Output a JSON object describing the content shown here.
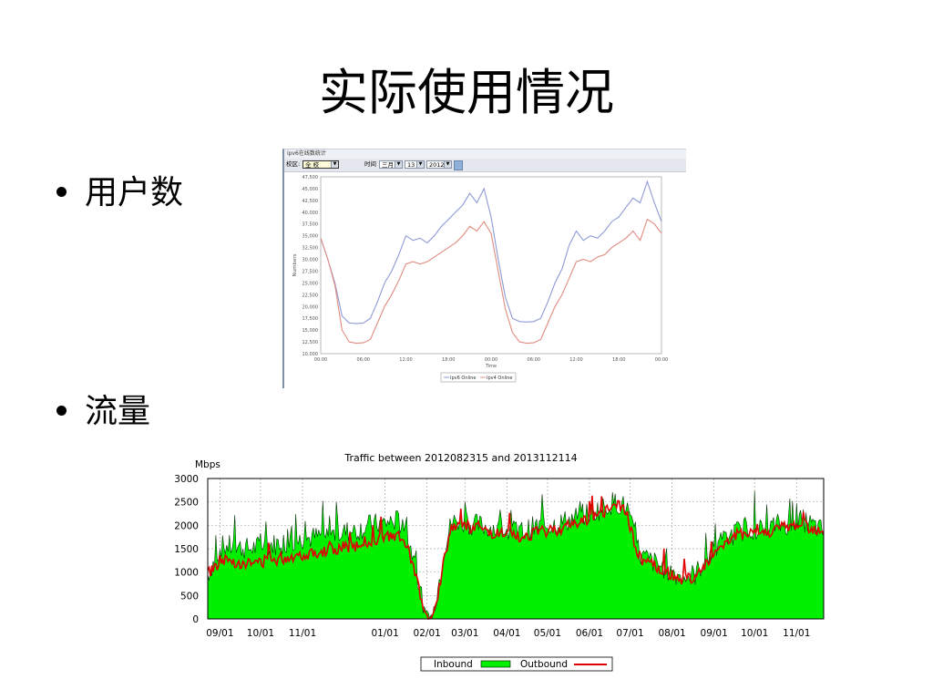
{
  "slide": {
    "title": "实际使用情况",
    "bullets": [
      "用户数",
      "流量"
    ]
  },
  "panel": {
    "title": "ipv6在线数统计",
    "region_label": "校区:",
    "region_value": "全 校",
    "time_label": "时间",
    "month_value": "三月",
    "day_value": "13",
    "year_value": "2012"
  },
  "chart_data": [
    {
      "type": "line",
      "xlabel": "Time",
      "ylabel": "Numbers",
      "ylim": [
        10000,
        47500
      ],
      "yticks": [
        "10,000",
        "12,500",
        "15,000",
        "17,500",
        "20,000",
        "22,500",
        "25,000",
        "27,500",
        "30,000",
        "32,500",
        "35,000",
        "37,500",
        "40,000",
        "42,500",
        "45,000",
        "47,500"
      ],
      "xticks": [
        "00:00",
        "06:00",
        "12:00",
        "18:00",
        "00:00",
        "06:00",
        "12:00",
        "18:00",
        "00:00"
      ],
      "legend": [
        "Ipv6 Online",
        "Ipv4 Online"
      ],
      "colors": {
        "ipv6": "#8f9ad6",
        "ipv4": "#e08c80"
      },
      "series": [
        {
          "name": "Ipv6 Online",
          "x": [
            0,
            1,
            2,
            3,
            4,
            5,
            6,
            7,
            8,
            9,
            10,
            11,
            12,
            13,
            14,
            15,
            16,
            17,
            18,
            19,
            20,
            21,
            22,
            23,
            24,
            25,
            26,
            27,
            28,
            29,
            30,
            31,
            32,
            33,
            34,
            35,
            36,
            37,
            38,
            39,
            40,
            41,
            42,
            43,
            44,
            45,
            46,
            47,
            48
          ],
          "values": [
            34500,
            30000,
            25000,
            18000,
            16500,
            16400,
            16500,
            17500,
            21000,
            25000,
            27500,
            31000,
            35000,
            34000,
            34500,
            33500,
            35000,
            37000,
            38500,
            40000,
            41500,
            44000,
            42000,
            45000,
            39000,
            30000,
            22000,
            17500,
            16800,
            16700,
            16800,
            17500,
            21000,
            25000,
            28000,
            33000,
            36000,
            34000,
            35000,
            34500,
            36000,
            38000,
            39000,
            41000,
            43000,
            42000,
            46500,
            42000,
            38000
          ]
        },
        {
          "name": "Ipv4 Online",
          "x": [
            0,
            1,
            2,
            3,
            4,
            5,
            6,
            7,
            8,
            9,
            10,
            11,
            12,
            13,
            14,
            15,
            16,
            17,
            18,
            19,
            20,
            21,
            22,
            23,
            24,
            25,
            26,
            27,
            28,
            29,
            30,
            31,
            32,
            33,
            34,
            35,
            36,
            37,
            38,
            39,
            40,
            41,
            42,
            43,
            44,
            45,
            46,
            47,
            48
          ],
          "values": [
            34500,
            30000,
            24500,
            15000,
            12500,
            12200,
            12300,
            13000,
            16500,
            20000,
            22500,
            25500,
            29000,
            29500,
            29000,
            29500,
            30500,
            31500,
            32500,
            33500,
            35000,
            37000,
            36000,
            38000,
            35500,
            27500,
            19500,
            14500,
            12500,
            12200,
            12300,
            13000,
            16500,
            20000,
            22500,
            26000,
            29500,
            30000,
            29500,
            30500,
            31000,
            32500,
            33500,
            34500,
            36000,
            34000,
            38500,
            37500,
            35500
          ]
        }
      ]
    },
    {
      "type": "area",
      "title": "Traffic between 2012082315 and 2013112114",
      "ylabel": "Mbps",
      "ylim": [
        0,
        3000
      ],
      "yticks": [
        "0",
        "500",
        "1000",
        "1500",
        "2000",
        "2500",
        "3000"
      ],
      "xticks": [
        "09/01",
        "10/01",
        "11/01",
        "01/01",
        "02/01",
        "03/01",
        "04/01",
        "05/01",
        "06/01",
        "07/01",
        "08/01",
        "09/01",
        "10/01",
        "11/01"
      ],
      "xtick_days": [
        9,
        39,
        70,
        131,
        162,
        190,
        221,
        251,
        282,
        312,
        343,
        374,
        404,
        435
      ],
      "xlim_days": [
        0,
        455
      ],
      "legend": [
        "Inbound",
        "Outbound"
      ],
      "colors": {
        "inbound": "#00f000",
        "outbound": "#e00000",
        "grid": "#aaaaaa"
      },
      "series": [
        {
          "name": "Inbound",
          "x": [
            0,
            5,
            10,
            20,
            30,
            40,
            50,
            60,
            70,
            80,
            90,
            100,
            110,
            120,
            130,
            140,
            145,
            150,
            155,
            160,
            163,
            166,
            170,
            175,
            180,
            185,
            190,
            200,
            210,
            220,
            230,
            240,
            250,
            260,
            270,
            280,
            290,
            300,
            305,
            310,
            315,
            320,
            330,
            340,
            350,
            360,
            370,
            380,
            390,
            400,
            410,
            420,
            430,
            440,
            450,
            455
          ],
          "values": [
            900,
            1200,
            1500,
            1500,
            1450,
            1500,
            1550,
            1600,
            1650,
            1700,
            1750,
            1800,
            1850,
            1950,
            2000,
            2050,
            1900,
            1500,
            800,
            200,
            0,
            50,
            600,
            1500,
            2000,
            2050,
            2000,
            1950,
            1900,
            1850,
            1800,
            1900,
            1950,
            2000,
            2100,
            2200,
            2300,
            2450,
            2400,
            2300,
            1700,
            1300,
            1150,
            1000,
            850,
            900,
            1300,
            1600,
            1800,
            1900,
            1850,
            1950,
            2000,
            2050,
            1900,
            1800
          ]
        },
        {
          "name": "Outbound",
          "x": [
            0,
            5,
            10,
            20,
            30,
            40,
            50,
            60,
            70,
            80,
            90,
            100,
            110,
            120,
            130,
            140,
            145,
            150,
            155,
            160,
            163,
            166,
            170,
            175,
            180,
            185,
            190,
            200,
            210,
            220,
            230,
            240,
            250,
            260,
            270,
            280,
            290,
            300,
            305,
            310,
            315,
            320,
            330,
            340,
            350,
            360,
            370,
            380,
            390,
            400,
            410,
            420,
            430,
            440,
            450,
            455
          ],
          "values": [
            950,
            1050,
            1250,
            1200,
            1150,
            1200,
            1250,
            1300,
            1350,
            1400,
            1450,
            1500,
            1550,
            1650,
            1700,
            1750,
            1600,
            1300,
            700,
            150,
            0,
            50,
            500,
            1300,
            1950,
            2000,
            1950,
            1900,
            1800,
            1750,
            1700,
            1800,
            1850,
            1900,
            2000,
            2100,
            2200,
            2400,
            2350,
            2200,
            1600,
            1250,
            1100,
            950,
            800,
            850,
            1250,
            1550,
            1750,
            1850,
            1800,
            1900,
            1950,
            2000,
            1850,
            1750
          ]
        }
      ]
    }
  ]
}
